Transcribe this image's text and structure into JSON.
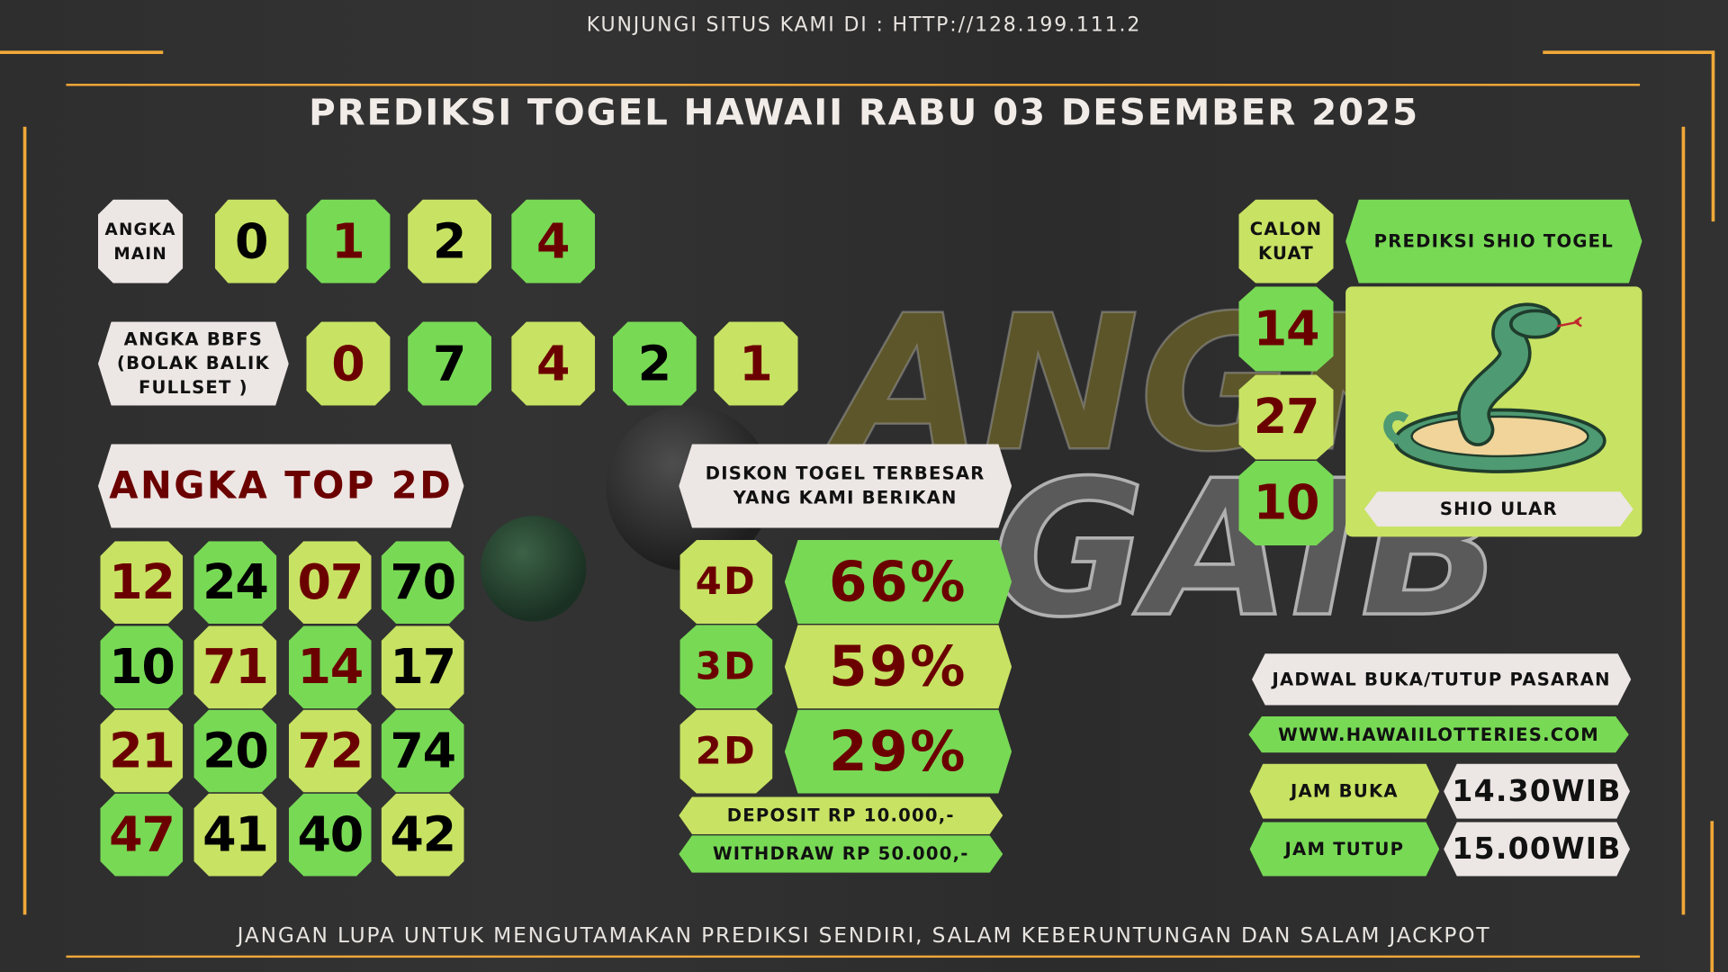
{
  "header": {
    "visit_text": "KUNJUNGI SITUS KAMI DI : HTTP://128.199.111.2",
    "title": "PREDIKSI TOGEL HAWAII RABU 03 DESEMBER 2025"
  },
  "watermark": {
    "line1": "ANGKA",
    "line2": "GAIB"
  },
  "angka_main": {
    "label_1": "ANGKA",
    "label_2": "MAIN",
    "digits": [
      {
        "v": "0",
        "bg": "lg",
        "c": "blk"
      },
      {
        "v": "1",
        "bg": "gr",
        "c": "red"
      },
      {
        "v": "2",
        "bg": "lg",
        "c": "blk"
      },
      {
        "v": "4",
        "bg": "gr",
        "c": "red"
      }
    ]
  },
  "bbfs": {
    "label_1": "ANGKA BBFS",
    "label_2": "(BOLAK BALIK",
    "label_3": "FULLSET )",
    "digits": [
      {
        "v": "0",
        "bg": "lg",
        "c": "red"
      },
      {
        "v": "7",
        "bg": "gr",
        "c": "blk"
      },
      {
        "v": "4",
        "bg": "lg",
        "c": "red"
      },
      {
        "v": "2",
        "bg": "gr",
        "c": "blk"
      },
      {
        "v": "1",
        "bg": "lg",
        "c": "red"
      }
    ]
  },
  "top2d": {
    "label": "ANGKA TOP 2D",
    "rows": [
      [
        {
          "v": "12",
          "bg": "lg",
          "c": "red"
        },
        {
          "v": "24",
          "bg": "gr",
          "c": "blk"
        },
        {
          "v": "07",
          "bg": "lg",
          "c": "red"
        },
        {
          "v": "70",
          "bg": "gr",
          "c": "blk"
        }
      ],
      [
        {
          "v": "10",
          "bg": "gr",
          "c": "blk"
        },
        {
          "v": "71",
          "bg": "lg",
          "c": "red"
        },
        {
          "v": "14",
          "bg": "gr",
          "c": "red"
        },
        {
          "v": "17",
          "bg": "lg",
          "c": "blk"
        }
      ],
      [
        {
          "v": "21",
          "bg": "lg",
          "c": "red"
        },
        {
          "v": "20",
          "bg": "gr",
          "c": "blk"
        },
        {
          "v": "72",
          "bg": "lg",
          "c": "red"
        },
        {
          "v": "74",
          "bg": "gr",
          "c": "blk"
        }
      ],
      [
        {
          "v": "47",
          "bg": "gr",
          "c": "red"
        },
        {
          "v": "41",
          "bg": "lg",
          "c": "blk"
        },
        {
          "v": "40",
          "bg": "gr",
          "c": "blk"
        },
        {
          "v": "42",
          "bg": "lg",
          "c": "blk"
        }
      ]
    ]
  },
  "diskon": {
    "label_1": "DISKON TOGEL TERBESAR",
    "label_2": "YANG KAMI BERIKAN",
    "rows": [
      {
        "type": "4D",
        "value": "66%",
        "bg": "gr"
      },
      {
        "type": "3D",
        "value": "59%",
        "bg": "lg"
      },
      {
        "type": "2D",
        "value": "29%",
        "bg": "gr"
      }
    ],
    "deposit": "DEPOSIT RP 10.000,-",
    "withdraw": "WITHDRAW RP 50.000,-"
  },
  "calon_kuat": {
    "label_1": "CALON",
    "label_2": "KUAT",
    "numbers": [
      {
        "v": "14",
        "bg": "gr"
      },
      {
        "v": "27",
        "bg": "lg"
      },
      {
        "v": "10",
        "bg": "gr"
      }
    ]
  },
  "shio": {
    "title": "PREDIKSI SHIO TOGEL",
    "name": "SHIO ULAR",
    "icon": "snake-icon"
  },
  "jadwal": {
    "title": "JADWAL BUKA/TUTUP PASARAN",
    "website": "WWW.HAWAIILOTTERIES.COM",
    "buka_label": "JAM BUKA",
    "buka_value": "14.30WIB",
    "tutup_label": "JAM TUTUP",
    "tutup_value": "15.00WIB"
  },
  "footer": {
    "text": "JANGAN LUPA UNTUK MENGUTAMAKAN PREDIKSI SENDIRI, SALAM KEBERUNTUNGAN DAN SALAM JACKPOT"
  },
  "colors": {
    "accent": "#f0a838",
    "light_green": "#c8e263",
    "green": "#78d955",
    "dark_red": "#6b0000",
    "white_box": "#ece6e4"
  }
}
